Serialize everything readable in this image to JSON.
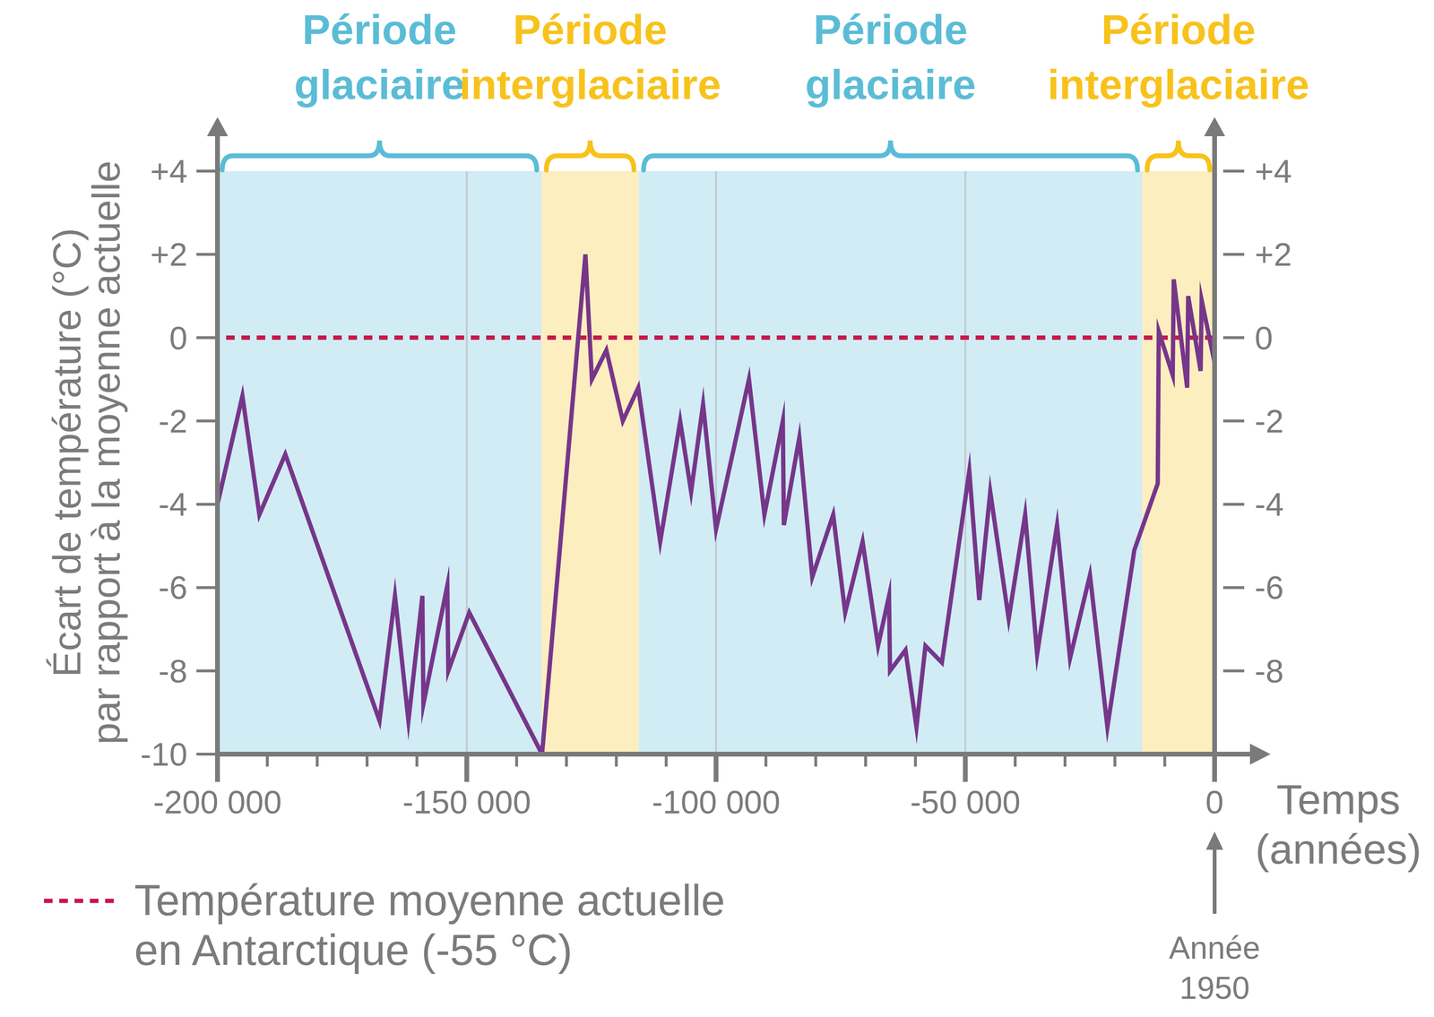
{
  "chart_data": {
    "type": "line",
    "ylabel": [
      "Écart de température (°C)",
      "par rapport à la moyenne actuelle"
    ],
    "xlabel": [
      "Temps",
      "(années)"
    ],
    "x": [
      -200000,
      -195000,
      -191600,
      -186400,
      -167500,
      -164400,
      -161700,
      -158900,
      -158700,
      -153900,
      -153700,
      -149500,
      -134900,
      -126200,
      -124900,
      -122000,
      -118700,
      -115600,
      -111200,
      -107200,
      -105000,
      -102600,
      -100000,
      -93400,
      -90300,
      -86600,
      -86400,
      -83300,
      -80700,
      -76500,
      -74100,
      -70600,
      -67500,
      -65300,
      -65100,
      -62000,
      -59800,
      -58000,
      -54700,
      -49200,
      -47200,
      -45000,
      -41300,
      -38000,
      -35600,
      -31600,
      -29000,
      -25000,
      -21500,
      -16100,
      -11400,
      -11200,
      -8400,
      -8200,
      -5500,
      -5300,
      -2800,
      -2600,
      0
    ],
    "series": [
      {
        "color": "#76368a",
        "values": [
          -4.0,
          -1.4,
          -4.25,
          -2.8,
          -9.2,
          -6.2,
          -9.2,
          -6.2,
          -8.8,
          -5.95,
          -8.0,
          -6.6,
          -10.0,
          2.0,
          -1.0,
          -0.3,
          -2.0,
          -1.2,
          -4.9,
          -2.0,
          -3.7,
          -1.6,
          -4.6,
          -1.0,
          -4.25,
          -2.0,
          -4.5,
          -2.4,
          -5.75,
          -4.25,
          -6.6,
          -4.9,
          -7.4,
          -6.2,
          -8.0,
          -7.5,
          -9.35,
          -7.4,
          -7.8,
          -3.2,
          -6.3,
          -3.7,
          -6.75,
          -4.25,
          -7.6,
          -4.5,
          -7.7,
          -5.7,
          -9.35,
          -5.1,
          -3.5,
          0.15,
          -0.9,
          1.4,
          -1.2,
          1.0,
          -0.8,
          0.9,
          -0.6
        ]
      }
    ],
    "xlim": [
      -200000,
      0
    ],
    "xticks": [
      {
        "value": -200000,
        "label": "-200 000"
      },
      {
        "value": -150000,
        "label": "-150 000"
      },
      {
        "value": -100000,
        "label": "-100 000"
      },
      {
        "value": -50000,
        "label": "-50 000"
      },
      0
    ],
    "xminorticks": [
      -190000,
      -180000,
      -170000,
      -160000,
      -140000,
      -130000,
      -120000,
      -110000,
      -90000,
      -80000,
      -70000,
      -60000,
      -40000,
      -30000,
      -20000,
      -10000
    ],
    "ylim": [
      -10,
      4
    ],
    "yticks": [
      -10,
      -8,
      -6,
      -4,
      -2,
      0,
      {
        "value": 2,
        "label": "+2"
      },
      {
        "value": 4,
        "label": "+4"
      }
    ],
    "y2lim": [
      -10,
      4
    ],
    "y2ticks": [
      -8,
      -6,
      -4,
      -2,
      0,
      {
        "value": 2,
        "label": "+2"
      },
      {
        "value": 4,
        "label": "+4"
      }
    ],
    "grid": "x",
    "periods": [
      {
        "label": [
          "Période",
          "glaciaire"
        ],
        "start": -200000,
        "end": -135000,
        "color": "#5bbcd6"
      },
      {
        "label": [
          "Période",
          "interglaciaire"
        ],
        "start": -135000,
        "end": -115500,
        "color": "#f7c21c"
      },
      {
        "label": [
          "Période",
          "glaciaire"
        ],
        "start": -115500,
        "end": -14500,
        "color": "#5bbcd6"
      },
      {
        "label": [
          "Période",
          "interglaciaire"
        ],
        "start": -14500,
        "end": 0,
        "color": "#f7c21c"
      }
    ],
    "reference_lines": [
      {
        "value": 0,
        "label": [
          "Température moyenne actuelle",
          "en Antarctique (-55 °C)"
        ],
        "color": "#c8174b",
        "line_style": "dashed"
      }
    ],
    "annotations": [
      {
        "x": 0,
        "text": [
          "Année",
          "1950"
        ]
      }
    ]
  }
}
